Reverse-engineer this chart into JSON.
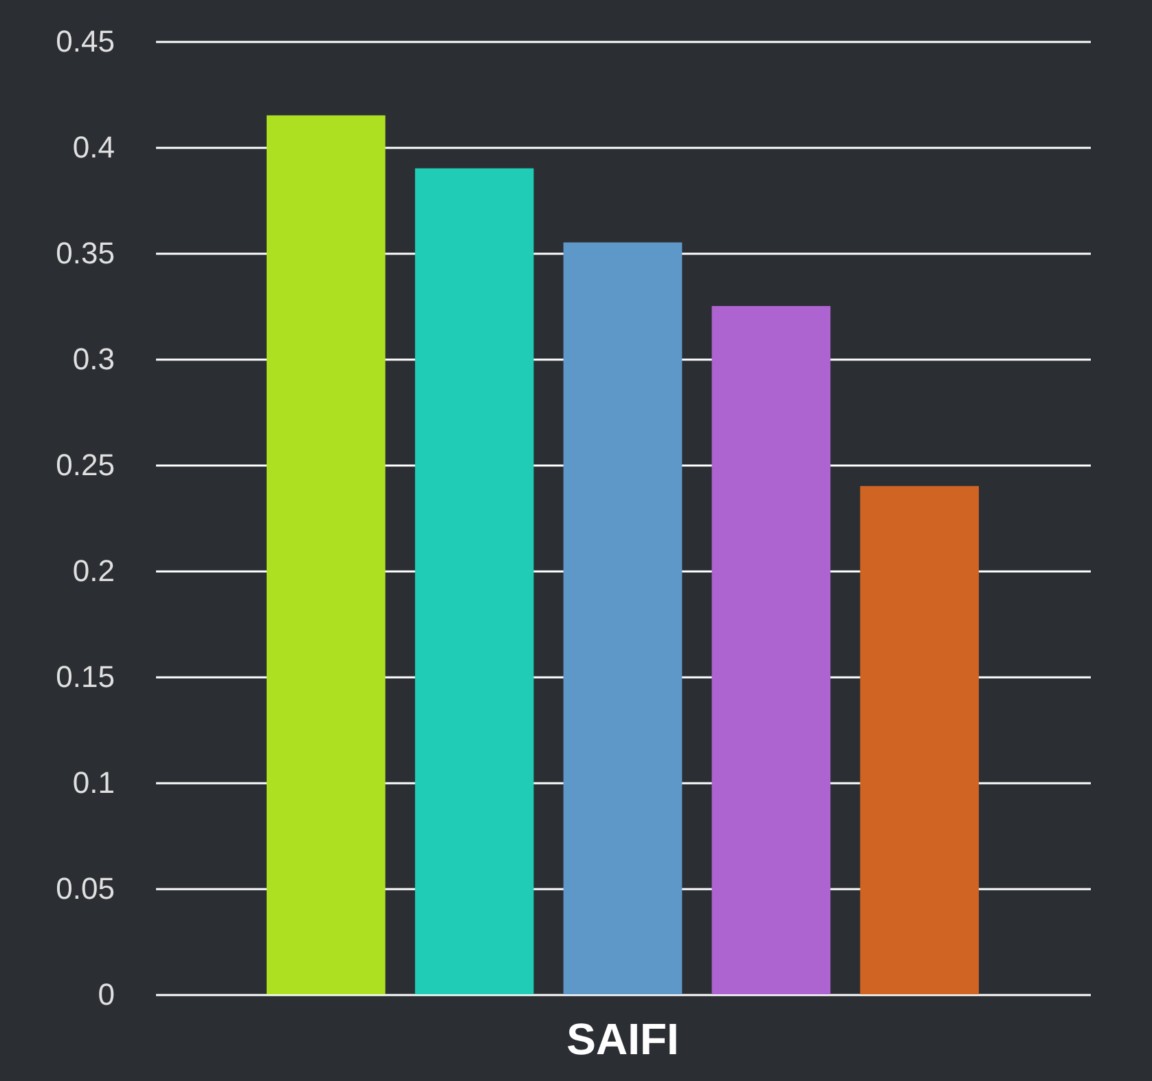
{
  "chart_data": {
    "type": "bar",
    "categories": [
      "SAIFI"
    ],
    "series": [
      {
        "color": "#aee022",
        "values": [
          0.415
        ]
      },
      {
        "color": "#20ccb6",
        "values": [
          0.39
        ]
      },
      {
        "color": "#5e98c8",
        "values": [
          0.355
        ]
      },
      {
        "color": "#ae64d0",
        "values": [
          0.325
        ]
      },
      {
        "color": "#d06422",
        "values": [
          0.24
        ]
      }
    ],
    "ylim": [
      0,
      0.45
    ],
    "yticks": [
      0,
      0.05,
      0.1,
      0.15,
      0.2,
      0.25,
      0.3,
      0.35,
      0.4,
      0.45
    ],
    "grid": "y",
    "legend": false
  }
}
